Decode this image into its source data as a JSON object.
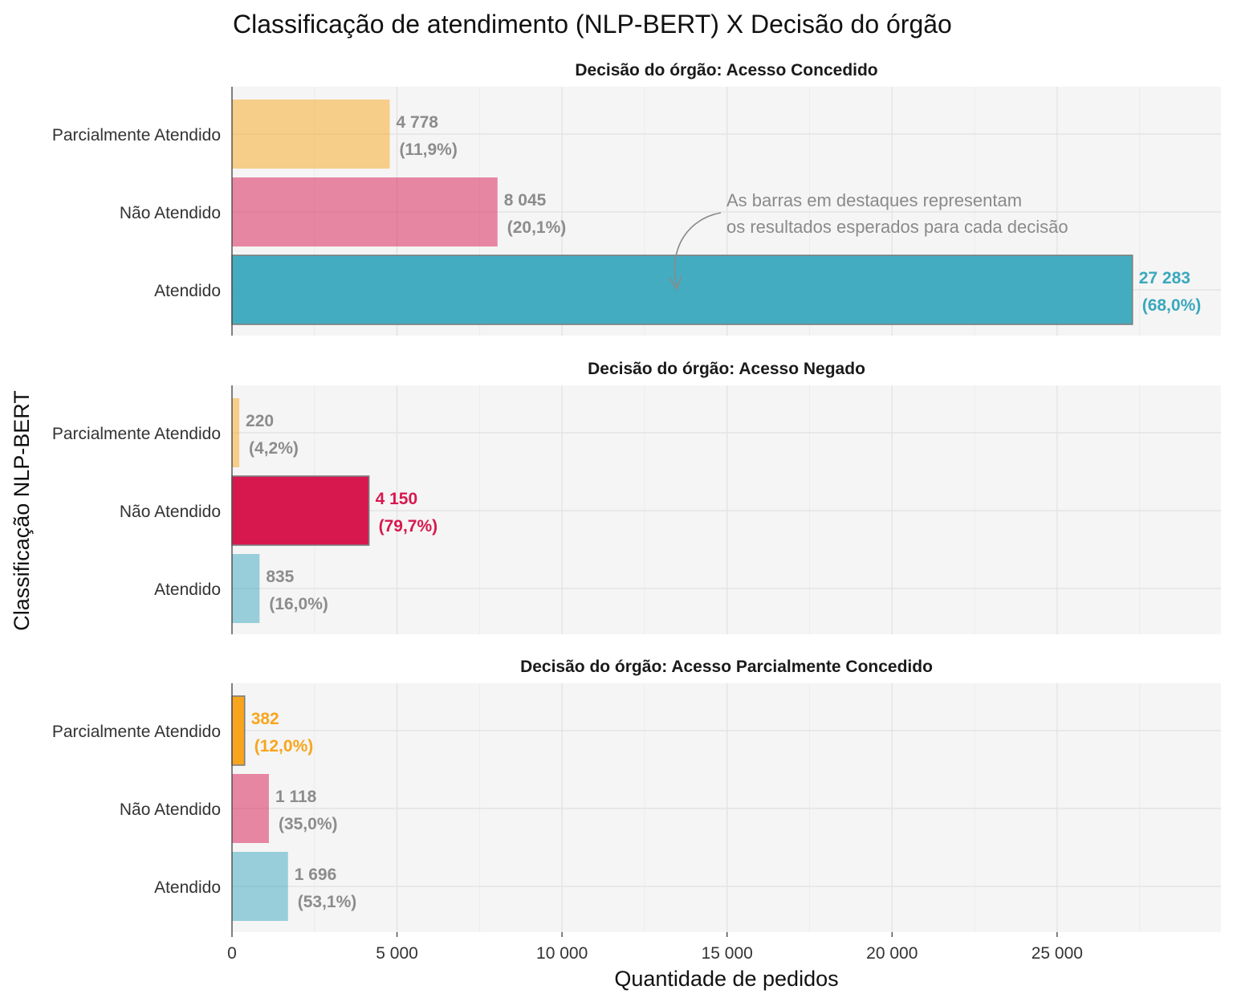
{
  "chart_data": {
    "type": "bar",
    "orientation": "horizontal",
    "title": "Classificação de atendimento (NLP-BERT) X Decisão do órgão",
    "xlabel": "Quantidade de pedidos",
    "ylabel": "Classificação NLP-BERT",
    "xlim": [
      0,
      30000
    ],
    "xticks": [
      0,
      5000,
      10000,
      15000,
      20000,
      25000
    ],
    "xtick_labels": [
      "0",
      "5 000",
      "10 000",
      "15 000",
      "20 000",
      "25 000"
    ],
    "categories": [
      "Parcialmente Atendido",
      "Não Atendido",
      "Atendido"
    ],
    "colors": {
      "Parcialmente Atendido": "#f8a51d",
      "Não Atendido": "#d7184f",
      "Atendido": "#3aa8bd",
      "muted_label": "#8c8c8c"
    },
    "annotation": {
      "text_line1": "As barras em destaques representam",
      "text_line2": "os resultados esperados para cada decisão"
    },
    "panels": [
      {
        "title": "Decisão do órgão: Acesso Concedido",
        "highlight": "Atendido",
        "bars": [
          {
            "category": "Parcialmente Atendido",
            "value": 4778,
            "label": "4 778",
            "pct": "(11,9%)"
          },
          {
            "category": "Não Atendido",
            "value": 8045,
            "label": "8 045",
            "pct": "(20,1%)"
          },
          {
            "category": "Atendido",
            "value": 27283,
            "label": "27 283",
            "pct": "(68,0%)"
          }
        ]
      },
      {
        "title": "Decisão do órgão: Acesso Negado",
        "highlight": "Não Atendido",
        "bars": [
          {
            "category": "Parcialmente Atendido",
            "value": 220,
            "label": "220",
            "pct": "(4,2%)"
          },
          {
            "category": "Não Atendido",
            "value": 4150,
            "label": "4 150",
            "pct": "(79,7%)"
          },
          {
            "category": "Atendido",
            "value": 835,
            "label": "835",
            "pct": "(16,0%)"
          }
        ]
      },
      {
        "title": "Decisão do órgão: Acesso Parcialmente Concedido",
        "highlight": "Parcialmente Atendido",
        "bars": [
          {
            "category": "Parcialmente Atendido",
            "value": 382,
            "label": "382",
            "pct": "(12,0%)"
          },
          {
            "category": "Não Atendido",
            "value": 1118,
            "label": "1 118",
            "pct": "(35,0%)"
          },
          {
            "category": "Atendido",
            "value": 1696,
            "label": "1 696",
            "pct": "(53,1%)"
          }
        ]
      }
    ]
  }
}
